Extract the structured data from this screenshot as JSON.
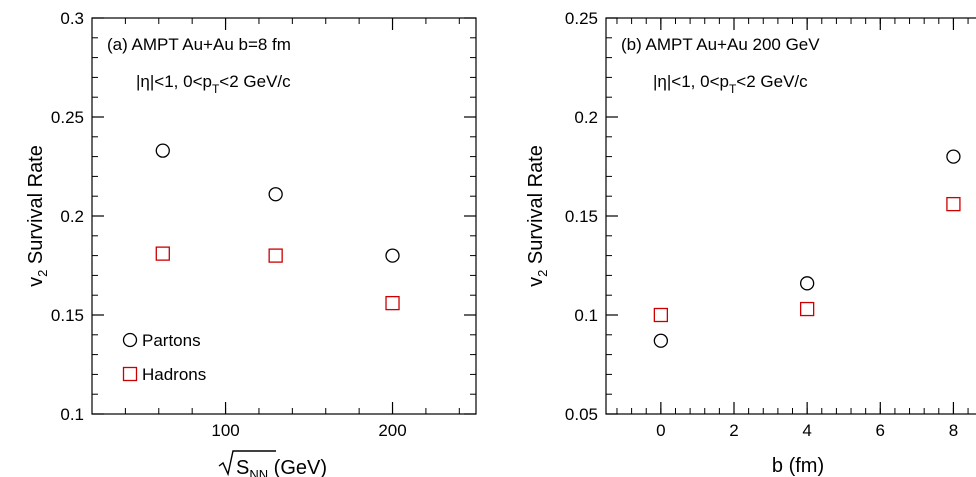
{
  "chart_data": [
    {
      "type": "scatter",
      "panel_label": "(a) AMPT Au+Au b=8 fm",
      "cuts": {
        "prefix": "|η|<1, 0<p",
        "sub": "T",
        "suffix": "<2 GeV/c"
      },
      "xlabel": {
        "main": "S",
        "sub": "NN",
        "suffix": " (GeV)"
      },
      "ylabel": {
        "main": "v",
        "sub": "2",
        "suffix": " Survival Rate"
      },
      "xlim": [
        20,
        250
      ],
      "ylim": [
        0.1,
        0.3
      ],
      "xticks": [
        100,
        200
      ],
      "yticks": [
        0.1,
        0.15,
        0.2,
        0.25,
        0.3
      ],
      "ytick_labels": [
        "0.1",
        "0.15",
        "0.2",
        "0.25",
        "0.3"
      ],
      "legend": {
        "placement": "bottom-left",
        "entries": [
          "Partons",
          "Hadrons"
        ]
      },
      "series": [
        {
          "name": "Partons",
          "marker": "circle",
          "color": "#000000",
          "x": [
            62.4,
            130,
            200
          ],
          "y": [
            0.233,
            0.211,
            0.18
          ]
        },
        {
          "name": "Hadrons",
          "marker": "square",
          "color": "#cc0000",
          "x": [
            62.4,
            130,
            200
          ],
          "y": [
            0.181,
            0.18,
            0.156
          ]
        }
      ]
    },
    {
      "type": "scatter",
      "panel_label": "(b) AMPT Au+Au 200 GeV",
      "cuts": {
        "prefix": "|η|<1, 0<p",
        "sub": "T",
        "suffix": "<2 GeV/c"
      },
      "xlabel": {
        "main": "b (fm)"
      },
      "ylabel": {
        "main": "v",
        "sub": "2",
        "suffix": " Survival Rate"
      },
      "xlim": [
        -1.5,
        9
      ],
      "ylim": [
        0.05,
        0.25
      ],
      "xticks": [
        0,
        2,
        4,
        6,
        8
      ],
      "yticks": [
        0.05,
        0.1,
        0.15,
        0.2,
        0.25
      ],
      "ytick_labels": [
        "0.05",
        "0.1",
        "0.15",
        "0.2",
        "0.25"
      ],
      "series": [
        {
          "name": "Partons",
          "marker": "circle",
          "color": "#000000",
          "x": [
            0,
            4,
            8
          ],
          "y": [
            0.087,
            0.116,
            0.18
          ]
        },
        {
          "name": "Hadrons",
          "marker": "square",
          "color": "#cc0000",
          "x": [
            0,
            4,
            8
          ],
          "y": [
            0.1,
            0.103,
            0.156
          ]
        }
      ]
    }
  ]
}
